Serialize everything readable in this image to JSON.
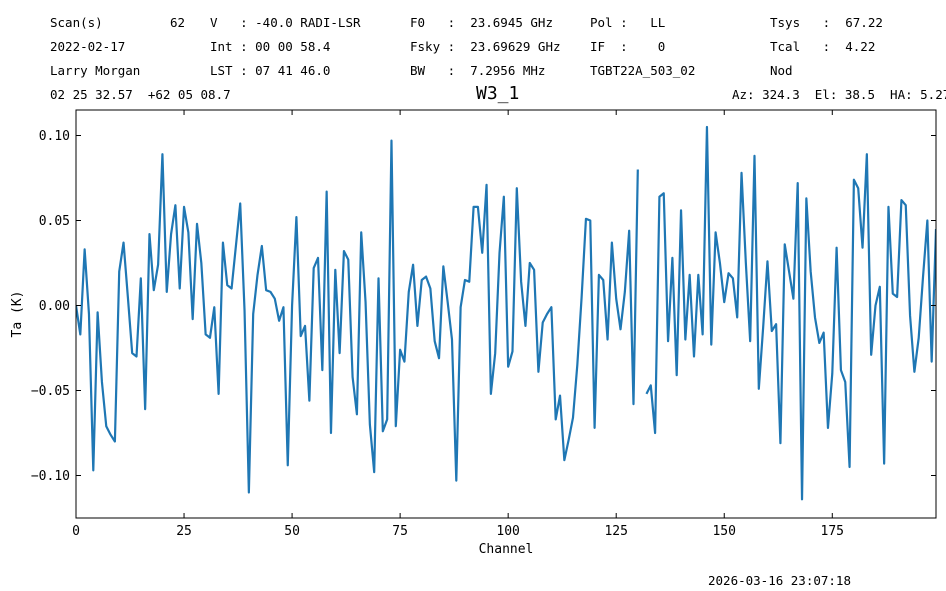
{
  "header": {
    "row1": [
      "Scan(s)",
      "62",
      "V   : -40.0 RADI-LSR",
      "F0   :  23.6945 GHz",
      "Pol :   LL",
      "Tsys   :  67.22"
    ],
    "row2": [
      "2022-02-17",
      "Int : 00 00 58.4",
      "Fsky :  23.69629 GHz",
      "IF  :    0",
      "Tcal   :  4.22"
    ],
    "row3": [
      "Larry Morgan",
      "LST : 07 41 46.0",
      "BW   :  7.2956 MHz",
      "TGBT22A_503_02",
      "Nod"
    ],
    "row4_left": "02 25 32.57  +62 05 08.7",
    "row4_right": "Az: 324.3  El: 38.5  HA: 5.27"
  },
  "timestamp": "2026-03-16 23:07:18",
  "colors": {
    "line": "#1f77b4",
    "axes": "#000000",
    "background": "#ffffff"
  },
  "chart_data": {
    "type": "line",
    "title": "W3_1",
    "xlabel": "Channel",
    "ylabel": "Ta (K)",
    "xlim": [
      0,
      199
    ],
    "ylim": [
      -0.125,
      0.115
    ],
    "xticks": [
      0,
      25,
      50,
      75,
      100,
      125,
      150,
      175
    ],
    "yticks": [
      -0.1,
      -0.05,
      0.0,
      0.05,
      0.1
    ],
    "ytick_labels": [
      "−0.10",
      "−0.05",
      "0.00",
      "0.05",
      "0.10"
    ],
    "grid": false,
    "series": [
      {
        "x0": 0,
        "dx": 1,
        "values": [
          0.0,
          -0.017,
          0.033,
          -0.005,
          -0.097,
          -0.004,
          -0.045,
          -0.071,
          -0.076,
          -0.08,
          0.02,
          0.037,
          0.005,
          -0.028,
          -0.03,
          0.016,
          -0.061,
          0.042,
          0.009,
          0.024,
          0.089,
          0.008,
          0.042,
          0.059,
          0.01,
          0.058,
          0.043,
          -0.008,
          0.048,
          0.025,
          -0.017,
          -0.019,
          -0.001,
          -0.052,
          0.037,
          0.012,
          0.01,
          0.035,
          0.06,
          -0.003,
          -0.11,
          -0.005,
          0.018,
          0.035,
          0.009,
          0.008,
          0.004,
          -0.009,
          -0.001,
          -0.094,
          0.0,
          0.052,
          -0.018,
          -0.012,
          -0.056,
          0.022,
          0.028,
          -0.038,
          0.067,
          -0.075,
          0.021,
          -0.028,
          0.032,
          0.027,
          -0.042,
          -0.064,
          0.043,
          0.002,
          -0.07,
          -0.098,
          0.016,
          -0.074,
          -0.067,
          0.097,
          -0.071,
          -0.026,
          -0.033,
          0.008,
          0.024,
          -0.012,
          0.015,
          0.017,
          0.01,
          -0.021,
          -0.031,
          0.023,
          0.002,
          -0.02,
          -0.103,
          -0.001,
          0.015,
          0.014,
          0.058,
          0.058,
          0.031,
          0.071,
          -0.052,
          -0.028,
          0.031,
          0.064,
          -0.036,
          -0.027,
          0.069,
          0.014,
          -0.012,
          0.025,
          0.021,
          -0.039,
          -0.01,
          -0.005,
          -0.001,
          -0.067,
          -0.053,
          -0.091,
          -0.079,
          -0.066,
          -0.035,
          0.005,
          0.051,
          0.05,
          -0.072,
          0.018,
          0.015,
          -0.02,
          0.037,
          0.004,
          -0.014,
          0.008,
          0.044,
          -0.058,
          0.08,
          null,
          -0.052,
          -0.047,
          -0.075,
          0.064,
          0.066,
          -0.021,
          0.028,
          -0.041,
          0.056,
          -0.02,
          0.018,
          -0.03,
          0.018,
          -0.017,
          0.105,
          -0.023,
          0.043,
          0.025,
          0.002,
          0.019,
          0.016,
          -0.007,
          0.078,
          0.025,
          -0.021,
          0.088,
          -0.049,
          -0.013,
          0.026,
          -0.015,
          -0.011,
          -0.081,
          0.036,
          0.02,
          0.004,
          0.072,
          -0.114,
          0.063,
          0.02,
          -0.007,
          -0.022,
          -0.016,
          -0.072,
          -0.04,
          0.034,
          -0.038,
          -0.045,
          -0.095,
          0.074,
          0.069,
          0.034,
          0.089,
          -0.029,
          0.0,
          0.011,
          -0.093,
          0.058,
          0.007,
          0.005,
          0.062,
          0.059,
          -0.006,
          -0.039,
          -0.019,
          0.017,
          0.05,
          -0.033,
          0.045
        ]
      }
    ]
  }
}
